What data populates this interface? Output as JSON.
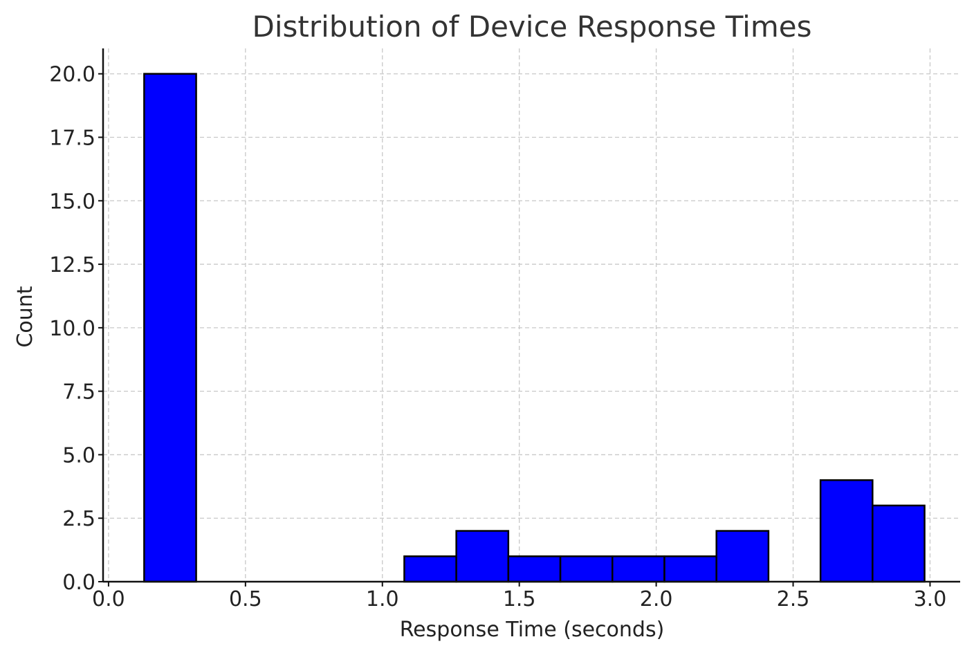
{
  "chart_data": {
    "type": "bar",
    "subtype": "histogram",
    "title": "Distribution of Device Response Times",
    "xlabel": "Response Time (seconds)",
    "ylabel": "Count",
    "xlim": [
      -0.02,
      3.11
    ],
    "ylim": [
      0,
      21
    ],
    "xticks": [
      0.0,
      0.5,
      1.0,
      1.5,
      2.0,
      2.5,
      3.0
    ],
    "xtick_labels": [
      "0.0",
      "0.5",
      "1.0",
      "1.5",
      "2.0",
      "2.5",
      "3.0"
    ],
    "yticks": [
      0,
      2.5,
      5,
      7.5,
      10,
      12.5,
      15,
      17.5,
      20
    ],
    "ytick_labels": [
      "0.0",
      "2.5",
      "5.0",
      "7.5",
      "10.0",
      "12.5",
      "15.0",
      "17.5",
      "20.0"
    ],
    "bins": [
      {
        "x0": 0.13,
        "x1": 0.32,
        "count": 20
      },
      {
        "x0": 0.32,
        "x1": 0.51,
        "count": 0
      },
      {
        "x0": 0.51,
        "x1": 0.7,
        "count": 0
      },
      {
        "x0": 0.7,
        "x1": 0.89,
        "count": 0
      },
      {
        "x0": 0.89,
        "x1": 1.08,
        "count": 0
      },
      {
        "x0": 1.08,
        "x1": 1.27,
        "count": 1
      },
      {
        "x0": 1.27,
        "x1": 1.46,
        "count": 2
      },
      {
        "x0": 1.46,
        "x1": 1.65,
        "count": 1
      },
      {
        "x0": 1.65,
        "x1": 1.84,
        "count": 1
      },
      {
        "x0": 1.84,
        "x1": 2.03,
        "count": 1
      },
      {
        "x0": 2.03,
        "x1": 2.22,
        "count": 1
      },
      {
        "x0": 2.22,
        "x1": 2.41,
        "count": 2
      },
      {
        "x0": 2.41,
        "x1": 2.6,
        "count": 0
      },
      {
        "x0": 2.6,
        "x1": 2.79,
        "count": 4
      },
      {
        "x0": 2.79,
        "x1": 2.98,
        "count": 3
      }
    ],
    "bar_color": "#0000ff",
    "edge_color": "#000000",
    "grid": true
  }
}
